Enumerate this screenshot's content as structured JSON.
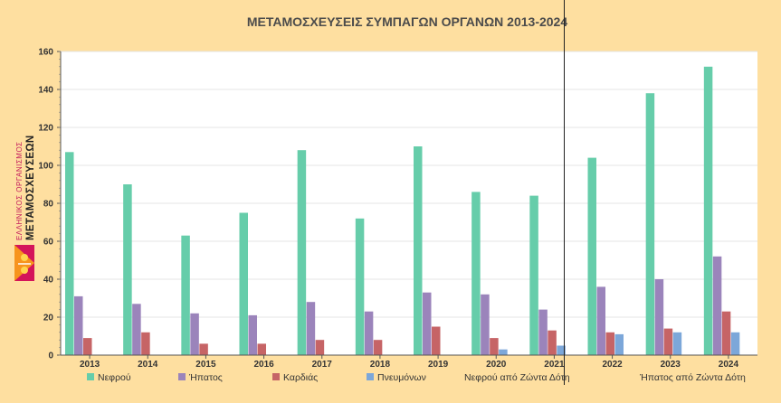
{
  "logo": {
    "line1": "ΕΛΛΗΝΙΚΟΣ ΟΡΓΑΝΙΣΜΟΣ",
    "line2": "ΜΕΤΑΜΟΣΧΕΥΣΕΩΝ"
  },
  "annotations": {
    "kidney_living": "Νεφρού από Ζώντα Δότη",
    "liver_living": "Ήπατος από Ζώντα Δότη"
  },
  "colors": {
    "background": "#fedfa0",
    "plot_area": "#ffffff",
    "kidney": "#66cdaa",
    "liver": "#9b84bb",
    "heart": "#c66466",
    "lung": "#7ca7d9"
  },
  "chart_data": {
    "type": "bar",
    "title": "ΜΕΤΑΜΟΣΧΕΥΣΕΙΣ ΣΥΜΠΑΓΩΝ ΟΡΓΑΝΩΝ 2013-2024",
    "xlabel": "",
    "ylabel": "",
    "ylim": [
      0,
      160
    ],
    "yticks": [
      0,
      20,
      40,
      60,
      80,
      100,
      120,
      140,
      160
    ],
    "grid": true,
    "legend_position": "bottom",
    "categories": [
      "2013",
      "2014",
      "2015",
      "2016",
      "2017",
      "2018",
      "2019",
      "2020",
      "2021",
      "2022",
      "2023",
      "2024"
    ],
    "series": [
      {
        "name": "Νεφρού",
        "color": "#66cdaa",
        "values": [
          107,
          90,
          63,
          75,
          108,
          72,
          110,
          86,
          84,
          104,
          138,
          152
        ]
      },
      {
        "name": "Ήπατος",
        "color": "#9b84bb",
        "values": [
          31,
          27,
          22,
          21,
          28,
          23,
          33,
          32,
          24,
          36,
          40,
          52
        ]
      },
      {
        "name": "Καρδιάς",
        "color": "#c66466",
        "values": [
          9,
          12,
          6,
          6,
          8,
          8,
          15,
          9,
          13,
          12,
          14,
          23
        ]
      },
      {
        "name": "Πνευμόνων",
        "color": "#7ca7d9",
        "values": [
          0,
          0,
          0,
          0,
          0,
          0,
          0,
          3,
          5,
          11,
          12,
          12
        ]
      }
    ]
  }
}
